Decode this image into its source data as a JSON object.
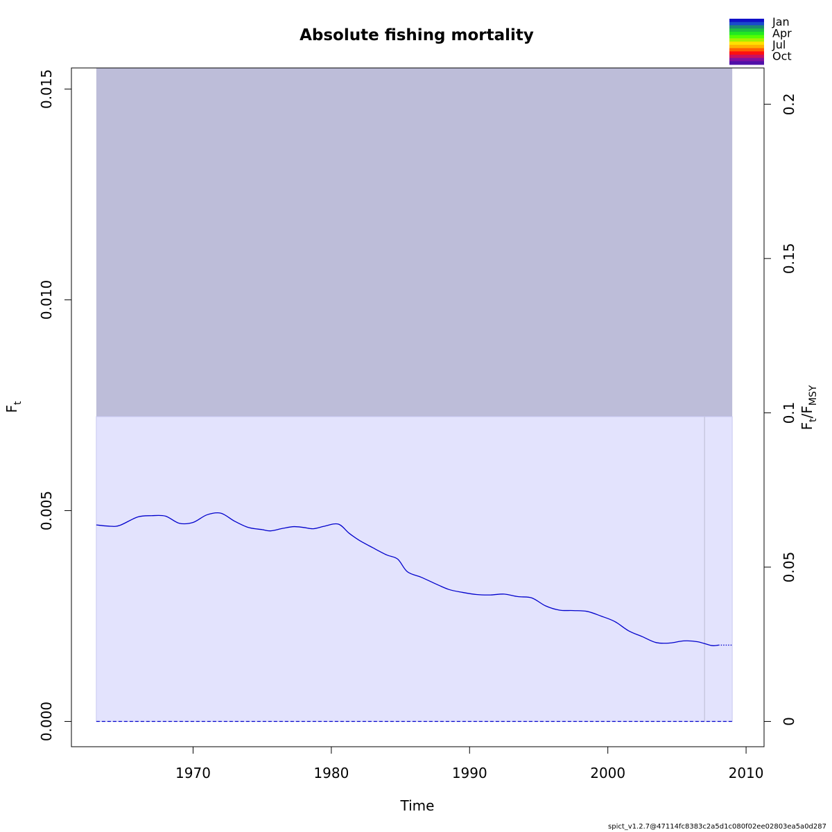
{
  "chart_data": {
    "type": "line",
    "title": "Absolute fishing mortality",
    "xlabel": "Time",
    "ylabel": "F",
    "ylabel_sub": "t",
    "y2label_main": "F",
    "y2label_sub1": "t",
    "y2label_mid": "/F",
    "y2label_sub2": "MSY",
    "xlim": [
      1961.2,
      2011.3
    ],
    "ylim": [
      -0.0006,
      0.0155
    ],
    "x_ticks": [
      1970,
      1980,
      1990,
      2000,
      2010
    ],
    "x_tick_labels": [
      "1970",
      "1980",
      "1990",
      "2000",
      "2010"
    ],
    "y_ticks": [
      0.0,
      0.005,
      0.01,
      0.015
    ],
    "y_tick_labels": [
      "0.000",
      "0.005",
      "0.010",
      "0.015"
    ],
    "y2_ticks": [
      0,
      0.05,
      0.1,
      0.15,
      0.2
    ],
    "y2_tick_labels": [
      "0",
      "0.05",
      "0.1",
      "0.15",
      "0.2"
    ],
    "fmsy_abs": 0.0732,
    "grid": false,
    "bands": [
      {
        "kind": "ci_fmsy_upper",
        "x": [
          1963,
          2009
        ],
        "y": [
          0.00723,
          0.0155
        ],
        "color": "#bdbdd9"
      },
      {
        "kind": "ci_lower",
        "x": [
          1963,
          2009
        ],
        "y": [
          0.0,
          0.00723
        ],
        "color": "#e3e3fd"
      }
    ],
    "vline": {
      "x": 2007,
      "y": [
        0.0,
        0.00723
      ],
      "color": "#c8c8e0"
    },
    "series": [
      {
        "style": "solid",
        "color": "#0000cc",
        "x": [
          1963,
          1964,
          1964.7,
          1966,
          1967,
          1968,
          1969,
          1970,
          1971,
          1972,
          1973,
          1974,
          1975,
          1975.6,
          1976.5,
          1977.3,
          1978,
          1978.7,
          1979.5,
          1980.5,
          1981.3,
          1982,
          1983,
          1984,
          1984.8,
          1985.5,
          1986.5,
          1987.5,
          1988.5,
          1989.5,
          1990.5,
          1991.5,
          1992.5,
          1993.5,
          1994.5,
          1995.5,
          1996.5,
          1997.5,
          1998.5,
          1999.5,
          2000.5,
          2001.5,
          2002.5,
          2003.5,
          2004.5,
          2005.5,
          2006.5,
          2007.5,
          2008
        ],
        "y": [
          0.00466,
          0.00463,
          0.00465,
          0.00485,
          0.00488,
          0.00487,
          0.0047,
          0.00472,
          0.0049,
          0.00494,
          0.00475,
          0.0046,
          0.00455,
          0.00452,
          0.00458,
          0.00462,
          0.0046,
          0.00457,
          0.00463,
          0.00468,
          0.00446,
          0.0043,
          0.00412,
          0.00395,
          0.00385,
          0.00355,
          0.00342,
          0.00327,
          0.00313,
          0.00306,
          0.00301,
          0.003,
          0.00302,
          0.00296,
          0.00293,
          0.00274,
          0.00264,
          0.00263,
          0.00261,
          0.0025,
          0.00237,
          0.00215,
          0.00201,
          0.00187,
          0.00186,
          0.00191,
          0.00189,
          0.0018,
          0.00181
        ]
      },
      {
        "style": "dotted",
        "color": "#0000cc",
        "x": [
          2008,
          2009
        ],
        "y": [
          0.00181,
          0.00181
        ]
      },
      {
        "style": "dashed",
        "color": "#0000cc",
        "x": [
          1963,
          2009
        ],
        "y": [
          0.0,
          0.0
        ]
      }
    ],
    "legend": {
      "placement": "top-right",
      "labels": [
        "Jan",
        "Apr",
        "Jul",
        "Oct"
      ],
      "colors": [
        "#1010c8",
        "#1a4acc",
        "#1e8a70",
        "#1dc040",
        "#22e822",
        "#55ff00",
        "#a8ef00",
        "#ffe000",
        "#ffb000",
        "#ff6000",
        "#ff1010",
        "#c81060",
        "#8010a0",
        "#5010a8"
      ]
    }
  },
  "footer": "spict_v1.2.7@47114fc8383c2a5d1c080f02ee02803ea5a0d287"
}
